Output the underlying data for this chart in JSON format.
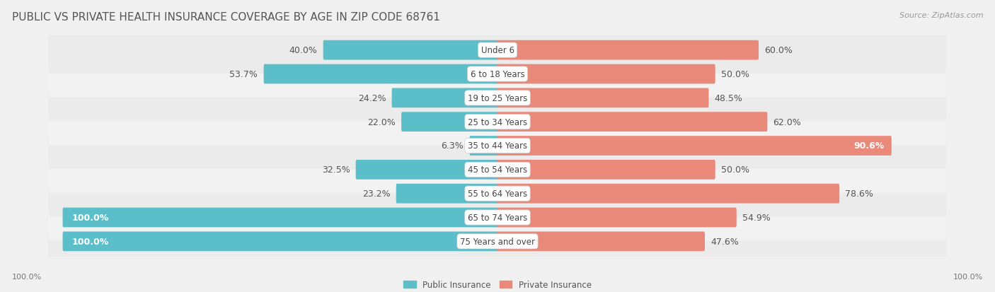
{
  "title": "PUBLIC VS PRIVATE HEALTH INSURANCE COVERAGE BY AGE IN ZIP CODE 68761",
  "source": "Source: ZipAtlas.com",
  "categories": [
    "Under 6",
    "6 to 18 Years",
    "19 to 25 Years",
    "25 to 34 Years",
    "35 to 44 Years",
    "45 to 54 Years",
    "55 to 64 Years",
    "65 to 74 Years",
    "75 Years and over"
  ],
  "public_values": [
    40.0,
    53.7,
    24.2,
    22.0,
    6.3,
    32.5,
    23.2,
    100.0,
    100.0
  ],
  "private_values": [
    60.0,
    50.0,
    48.5,
    62.0,
    90.6,
    50.0,
    78.6,
    54.9,
    47.6
  ],
  "public_color": "#5bbec8",
  "private_color": "#e8897a",
  "private_color_dark": "#d9705e",
  "public_label": "Public Insurance",
  "private_label": "Private Insurance",
  "background_color": "#f0f0f0",
  "row_bg": "#f7f7f7",
  "row_alt_bg": "#ebebeb",
  "title_fontsize": 11,
  "source_fontsize": 8,
  "axis_label_fontsize": 8,
  "bar_label_fontsize": 9,
  "category_fontsize": 8.5,
  "max_value": 100.0,
  "left_axis_label": "100.0%",
  "right_axis_label": "100.0%"
}
